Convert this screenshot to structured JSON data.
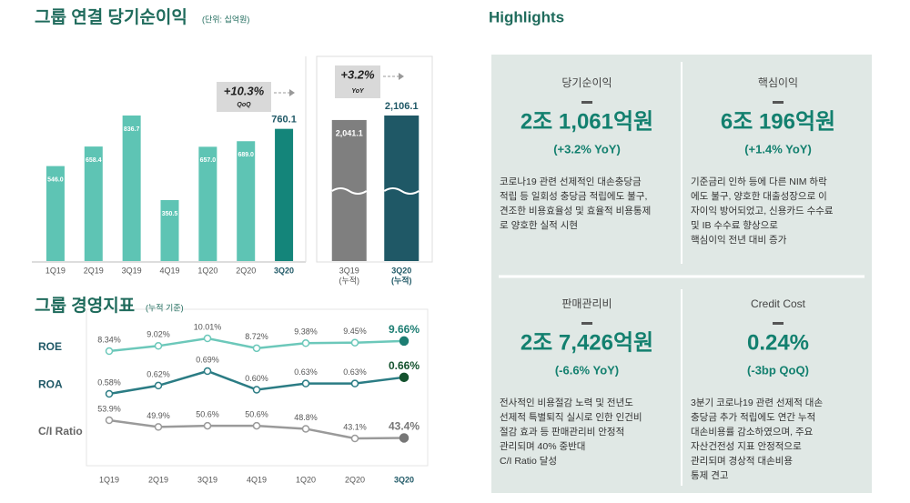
{
  "section_titles": {
    "net_income": "그룹 연결 당기순이익",
    "net_income_unit": "(단위: 십억원)",
    "metrics": "그룹 경영지표",
    "metrics_note": "(누적 기준)",
    "highlights": "Highlights"
  },
  "chart_data": [
    {
      "type": "bar",
      "categories": [
        "1Q19",
        "2Q19",
        "3Q19",
        "4Q19",
        "1Q20",
        "2Q20",
        "3Q20"
      ],
      "values": [
        546,
        658.4,
        836.7,
        350.5,
        657,
        689,
        760.1
      ],
      "value_labels": [
        "546.0",
        "658.4",
        "836.7",
        "350.5",
        "657.0",
        "689.0",
        "760.1"
      ],
      "colors": [
        "#5ec4b4",
        "#5ec4b4",
        "#5ec4b4",
        "#5ec4b4",
        "#5ec4b4",
        "#5ec4b4",
        "#14857a"
      ],
      "annotation": {
        "text": "+10.3%",
        "sub": "QoQ"
      }
    },
    {
      "type": "bar",
      "categories": [
        "3Q19",
        "3Q20"
      ],
      "category_notes": [
        "(누적)",
        "(누적)"
      ],
      "values": [
        2041.1,
        2106.1
      ],
      "value_labels": [
        "2,041.1",
        "2,106.1"
      ],
      "colors": [
        "#7f7f7f",
        "#1f5866"
      ],
      "annotation": {
        "text": "+3.2%",
        "sub": "YoY"
      }
    },
    {
      "type": "line",
      "categories": [
        "1Q19",
        "2Q19",
        "3Q19",
        "4Q19",
        "1Q20",
        "2Q20",
        "3Q20"
      ],
      "series": [
        {
          "name": "ROE",
          "color": "#6cc8ba",
          "values": [
            8.34,
            9.02,
            10.01,
            8.72,
            9.38,
            9.45,
            9.66
          ],
          "value_labels": [
            "8.34%",
            "9.02%",
            "10.01%",
            "8.72%",
            "9.38%",
            "9.45%",
            "9.66%"
          ]
        },
        {
          "name": "ROA",
          "color": "#2b7c84",
          "values": [
            0.58,
            0.62,
            0.69,
            0.6,
            0.63,
            0.63,
            0.66
          ],
          "value_labels": [
            "0.58%",
            "0.62%",
            "0.69%",
            "0.60%",
            "0.63%",
            "0.63%",
            "0.66%"
          ]
        },
        {
          "name": "C/I Ratio",
          "color": "#9a9a9a",
          "values": [
            53.9,
            49.9,
            50.6,
            50.6,
            48.8,
            43.1,
            43.4
          ],
          "value_labels": [
            "53.9%",
            "49.9%",
            "50.6%",
            "50.6%",
            "48.8%",
            "43.1%",
            "43.4%"
          ]
        }
      ]
    }
  ],
  "highlights": [
    {
      "title": "당기순이익",
      "amount": "2조 1,061억원",
      "change": "(+3.2% YoY)",
      "lines": [
        "코로나19 관련 선제적인 대손충당금",
        "적립 등 일회성 충당금 적립에도 불구,",
        "견조한 비용효율성 및 효율적 비용통제",
        "로 양호한 실적 시현"
      ]
    },
    {
      "title": "핵심이익",
      "amount": "6조 196억원",
      "change": "(+1.4% YoY)",
      "lines": [
        "기준금리 인하 등에 다른 NIM 하락",
        "에도 불구, 양호한 대출성장으로 이",
        "자이익 방어되었고, 신용카드 수수료",
        "및 IB 수수료 향상으로",
        "핵심이익 전년 대비 증가"
      ]
    },
    {
      "title": "판매관리비",
      "amount": "2조 7,426억원",
      "change": "(-6.6% YoY)",
      "lines": [
        "전사적인 비용절감 노력 및 전년도",
        "선제적 특별퇴직 실시로 인한 인건비",
        "절감 효과 등 판매관리비 안정적",
        "관리되며 40% 중반대",
        "C/I Ratio 달성"
      ]
    },
    {
      "title": "Credit Cost",
      "amount": "0.24%",
      "change": "(-3bp QoQ)",
      "lines": [
        "3분기 코로나19 관련 선제적 대손",
        "충당금 추가 적립에도 연간 누적",
        "대손비용률 감소하였으며, 주요",
        "자산건전성 지표 안정적으로",
        "관리되며 경상적 대손비용",
        "통제 견고"
      ]
    }
  ]
}
